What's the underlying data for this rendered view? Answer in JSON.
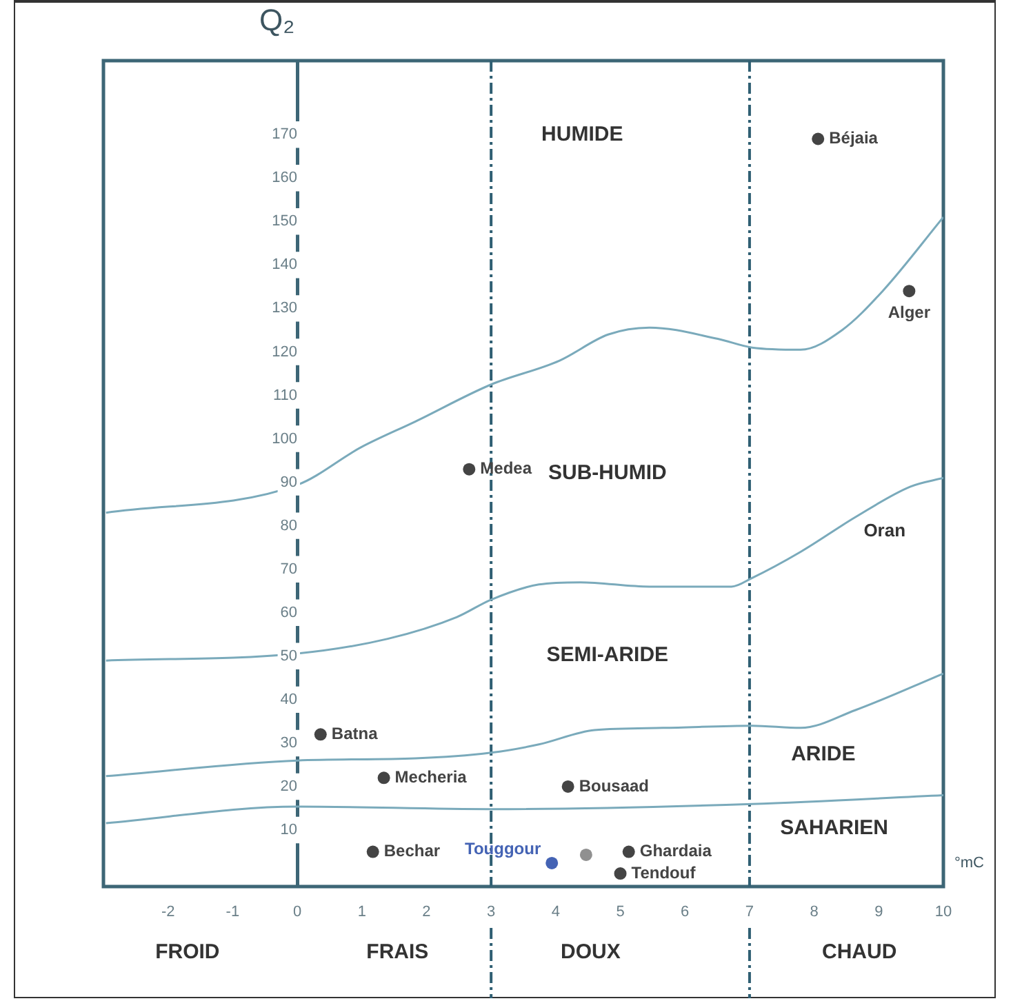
{
  "chart_data": {
    "type": "scatter",
    "ylabel": "Q₂",
    "xlabel": "°mC",
    "xlim": [
      -3,
      10
    ],
    "ylim": [
      -3,
      187
    ],
    "xticks": [
      -2,
      -1,
      0,
      1,
      2,
      3,
      4,
      5,
      6,
      7,
      8,
      9,
      10
    ],
    "yticks": [
      10,
      20,
      30,
      40,
      50,
      60,
      70,
      80,
      90,
      100,
      110,
      120,
      130,
      140,
      150,
      160,
      170
    ],
    "grid": false,
    "legend": false,
    "marker": "circle",
    "series": [
      {
        "type": "line",
        "color": "#7aaabb",
        "marker": "none",
        "x": [
          -2.96,
          0,
          0.98,
          1.83,
          3,
          4.06,
          4.81,
          5.45,
          6.51,
          7.04,
          7.79,
          8.43,
          9.06,
          10
        ],
        "values": [
          83,
          89.4,
          98,
          104,
          112.5,
          118,
          124,
          125.6,
          123,
          121,
          120.5,
          125,
          134,
          151
        ]
      },
      {
        "type": "line",
        "color": "#7aaabb",
        "marker": "none",
        "x": [
          -2.96,
          0,
          1.4,
          2.47,
          3,
          3.74,
          4.38,
          5.45,
          6.72,
          7.04,
          7.79,
          8.64,
          9.49,
          10
        ],
        "values": [
          49,
          50.6,
          54,
          59,
          63,
          66.5,
          67,
          66,
          66,
          68,
          74,
          82,
          89,
          91
        ]
      },
      {
        "type": "line",
        "color": "#7aaabb",
        "marker": "none",
        "x": [
          -2.96,
          0,
          1.83,
          3,
          3.74,
          4.6,
          5.66,
          7.04,
          7.79,
          8.64,
          10
        ],
        "values": [
          22.4,
          26,
          26.5,
          27.8,
          29.7,
          33,
          33.5,
          34,
          33.5,
          37.6,
          46
        ]
      },
      {
        "type": "line",
        "color": "#7aaabb",
        "marker": "none",
        "x": [
          -2.96,
          0,
          3,
          7.04,
          10
        ],
        "values": [
          11.6,
          15.4,
          14.8,
          16,
          18
        ]
      },
      {
        "name": "Béjaia",
        "color": "#444444",
        "x": [
          8.06
        ],
        "values": [
          169
        ]
      },
      {
        "name": "Alger",
        "color": "#444444",
        "x": [
          9.47
        ],
        "values": [
          134
        ]
      },
      {
        "name": "Medea",
        "color": "#444444",
        "x": [
          2.66
        ],
        "values": [
          93
        ]
      },
      {
        "name": "Batna",
        "color": "#444444",
        "x": [
          0.36
        ],
        "values": [
          32
        ]
      },
      {
        "name": "Mecheria",
        "color": "#444444",
        "x": [
          1.34
        ],
        "values": [
          22
        ]
      },
      {
        "name": "Bousaad",
        "color": "#444444",
        "x": [
          4.19
        ],
        "values": [
          20
        ]
      },
      {
        "name": "Bechar",
        "color": "#444444",
        "x": [
          1.17
        ],
        "values": [
          5
        ]
      },
      {
        "name": "Ghardaia",
        "color": "#444444",
        "x": [
          5.13
        ],
        "values": [
          5
        ]
      },
      {
        "name": "Tendouf",
        "color": "#444444",
        "x": [
          5.0
        ],
        "values": [
          0
        ]
      },
      {
        "name": "Touggour",
        "color": "#4463b4",
        "x": [
          3.94
        ],
        "values": [
          2.4
        ]
      },
      {
        "color": "#909090",
        "x": [
          4.47
        ],
        "values": [
          4.3
        ]
      }
    ],
    "ref_lines": [
      {
        "axis": "x",
        "value": 3,
        "line_style": "dashed",
        "color": "#2f5f73"
      },
      {
        "axis": "x",
        "value": 7,
        "line_style": "dashed",
        "color": "#2f5f73"
      }
    ],
    "annotations": [
      "HUMIDE",
      "SUB-HUMID",
      "SEMI-ARIDE",
      "ARIDE",
      "SAHARIEN",
      "Oran",
      "FROID",
      "FRAIS",
      "DOUX",
      "CHAUD"
    ]
  }
}
